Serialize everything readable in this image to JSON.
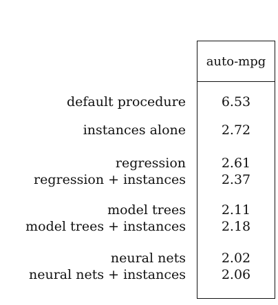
{
  "table": {
    "column_header": "auto-mpg",
    "rows": [
      {
        "label": "default procedure",
        "value": "6.53"
      },
      {
        "label": "instances alone",
        "value": "2.72"
      },
      {
        "label": "regression",
        "value": "2.61"
      },
      {
        "label": "regression + instances",
        "value": "2.37"
      },
      {
        "label": "model trees",
        "value": "2.11"
      },
      {
        "label": "model trees + instances",
        "value": "2.18"
      },
      {
        "label": "neural nets",
        "value": "2.02"
      },
      {
        "label": "neural nets + instances",
        "value": "2.06"
      }
    ]
  }
}
